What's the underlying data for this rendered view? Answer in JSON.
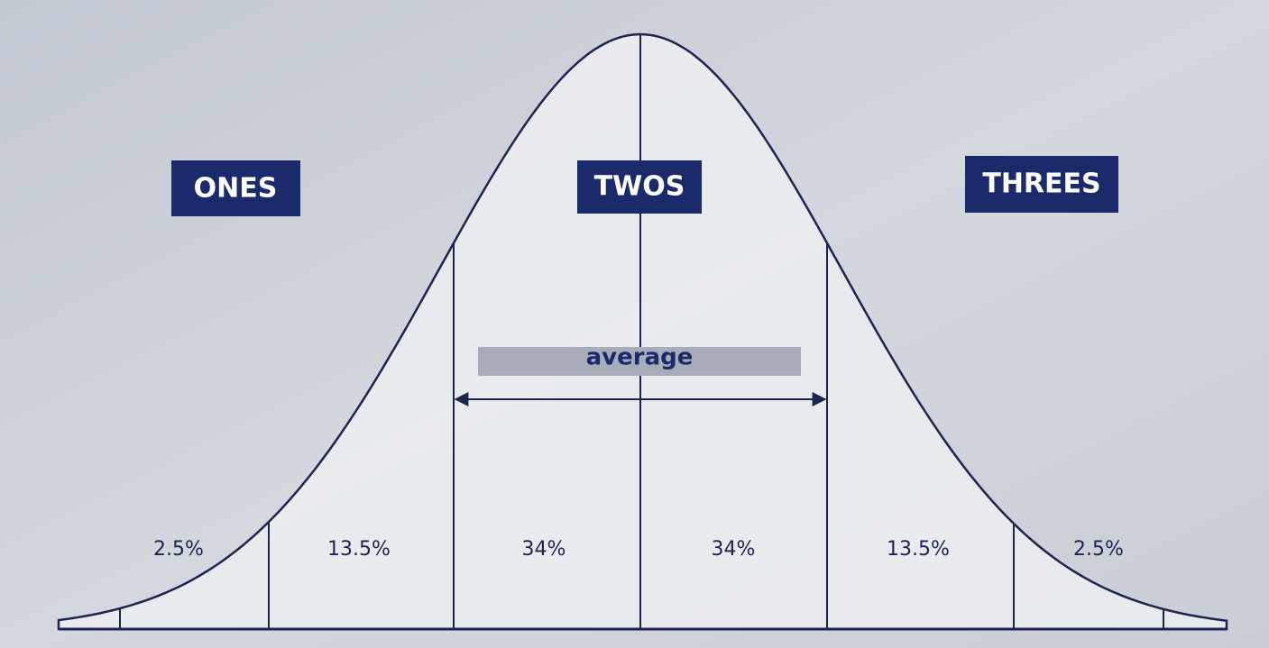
{
  "groups": [
    {
      "label": "ONES"
    },
    {
      "label": "TWOS"
    },
    {
      "label": "THREES"
    }
  ],
  "average_label": "average",
  "segments": [
    {
      "label": "2.5%"
    },
    {
      "label": "13.5%"
    },
    {
      "label": "34%"
    },
    {
      "label": "34%"
    },
    {
      "label": "13.5%"
    },
    {
      "label": "2.5%"
    }
  ]
}
